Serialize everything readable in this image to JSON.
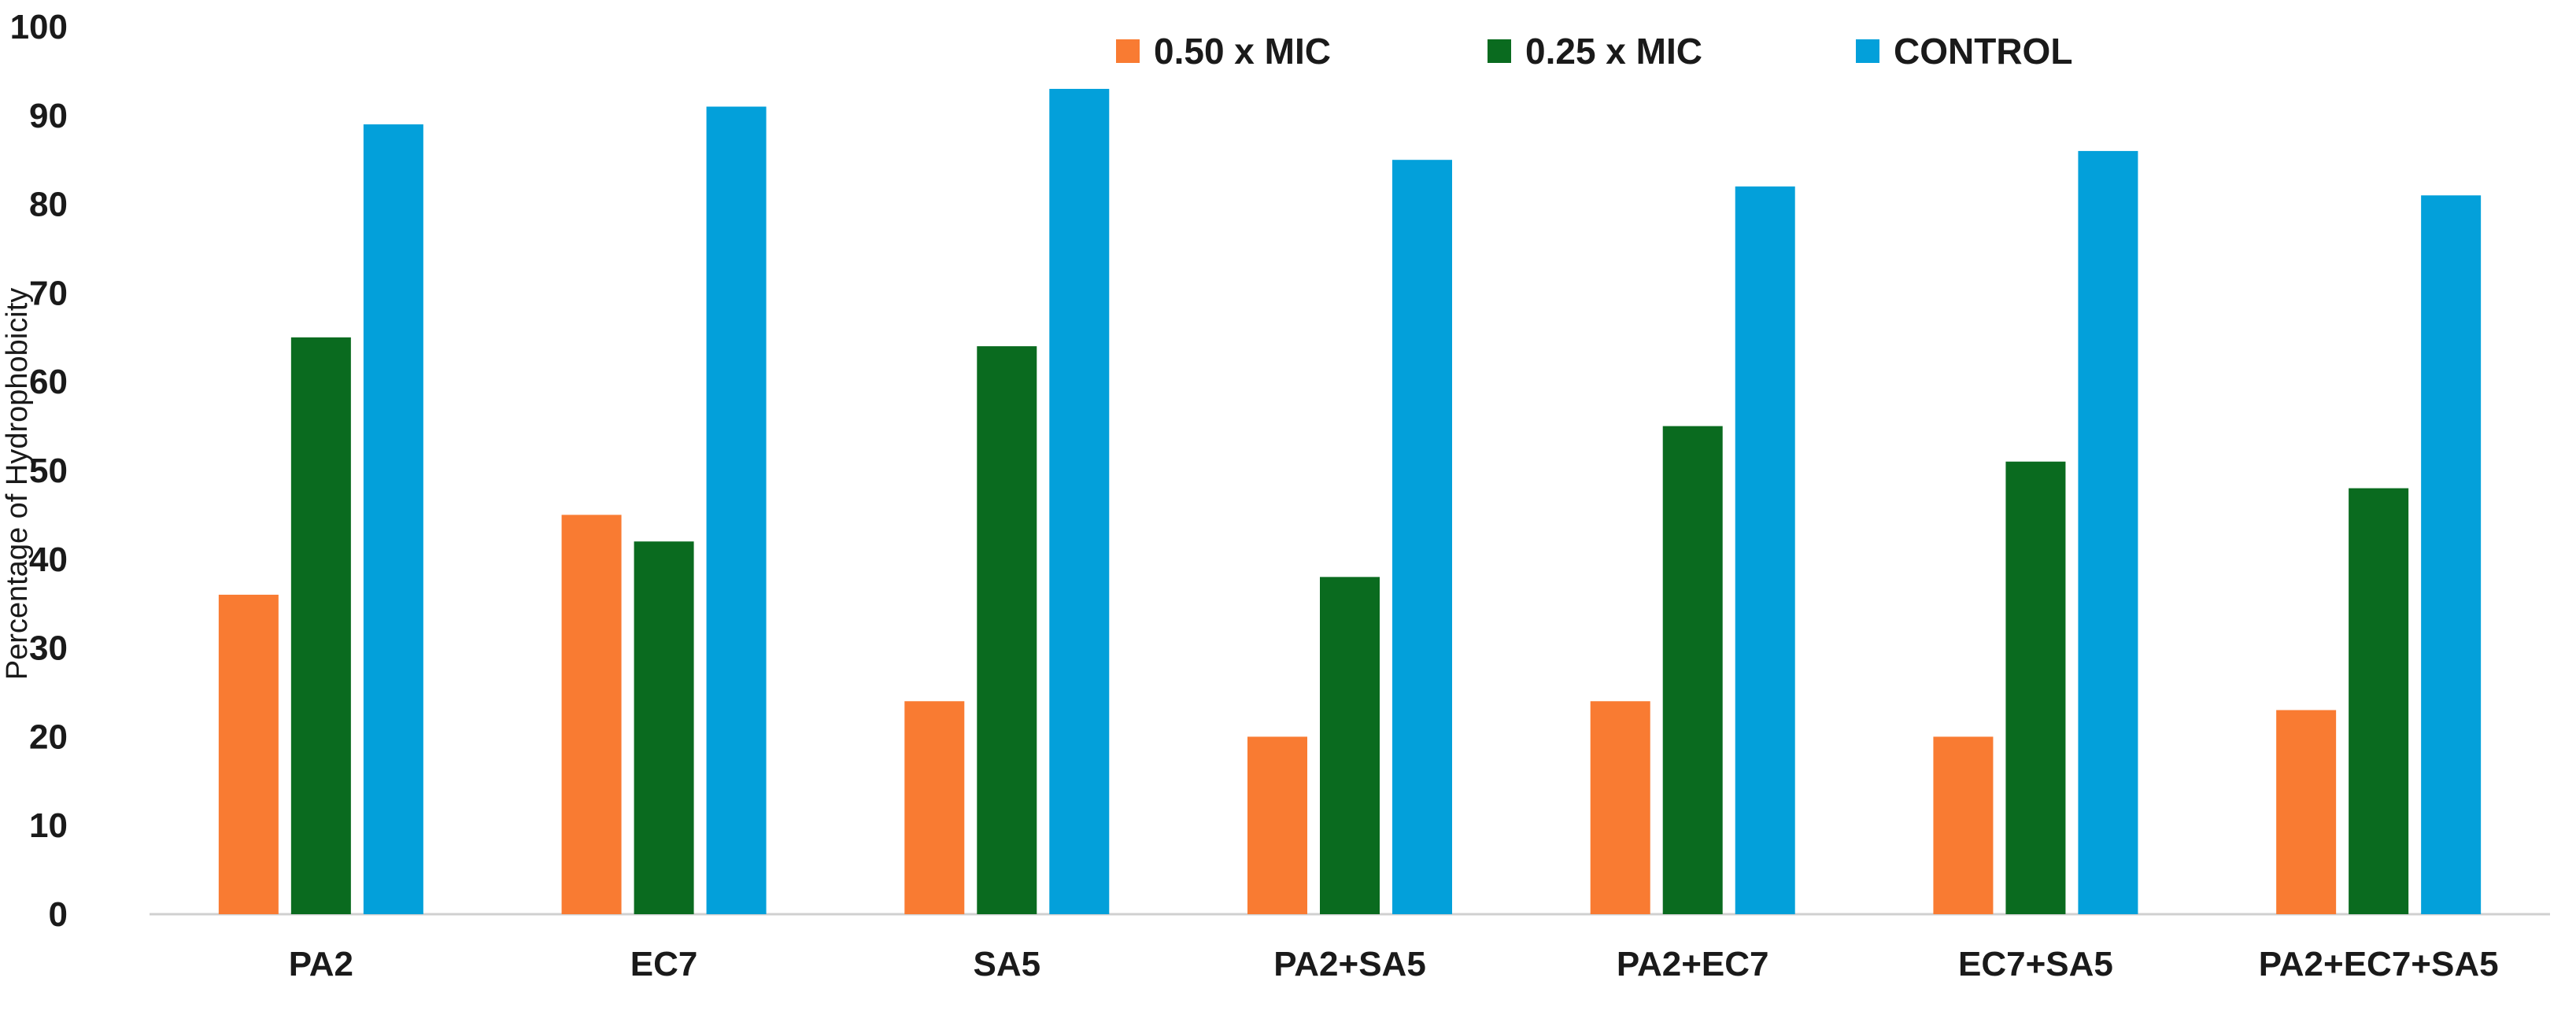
{
  "chart_data": {
    "type": "bar",
    "title": "",
    "xlabel": "",
    "ylabel": "Percentage of Hydrophobicity",
    "ylim": [
      0,
      100
    ],
    "yticks": [
      0,
      10,
      20,
      30,
      40,
      50,
      60,
      70,
      80,
      90,
      100
    ],
    "grid": false,
    "legend_position": "top",
    "categories": [
      "PA2",
      "EC7",
      "SA5",
      "PA2+SA5",
      "PA2+EC7",
      "EC7+SA5",
      "PA2+EC7+SA5"
    ],
    "series": [
      {
        "name": "0.50 x MIC",
        "color": "#F97B32",
        "values": [
          36,
          45,
          24,
          20,
          24,
          20,
          23
        ]
      },
      {
        "name": "0.25 x MIC",
        "color": "#0A6B1F",
        "values": [
          65,
          42,
          64,
          38,
          55,
          51,
          48
        ]
      },
      {
        "name": "CONTROL",
        "color": "#03A0DA",
        "values": [
          89,
          91,
          93,
          85,
          82,
          86,
          81
        ]
      }
    ]
  }
}
